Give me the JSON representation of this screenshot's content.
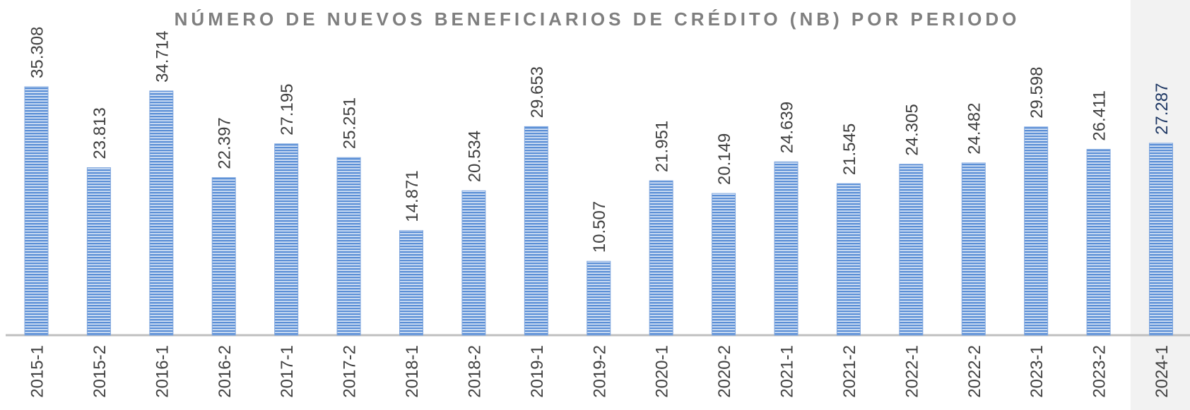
{
  "chart_data": {
    "type": "bar",
    "title": "NÚMERO DE NUEVOS BENEFICIARIOS DE CRÉDITO (NB) POR PERIODO",
    "categories": [
      "2015-1",
      "2015-2",
      "2016-1",
      "2016-2",
      "2017-1",
      "2017-2",
      "2018-1",
      "2018-2",
      "2019-1",
      "2019-2",
      "2020-1",
      "2020-2",
      "2021-1",
      "2021-2",
      "2022-1",
      "2022-2",
      "2023-1",
      "2023-2",
      "2024-1"
    ],
    "values": [
      35308,
      23813,
      34714,
      22397,
      27195,
      25251,
      14871,
      20534,
      29653,
      10507,
      21951,
      20149,
      24639,
      21545,
      24305,
      24482,
      29598,
      26411,
      27287
    ],
    "value_labels": [
      "35.308",
      "23.813",
      "34.714",
      "22.397",
      "27.195",
      "25.251",
      "14.871",
      "20.534",
      "29.653",
      "10.507",
      "21.951",
      "20.149",
      "24.639",
      "21.545",
      "24.305",
      "24.482",
      "29.598",
      "26.411",
      "27.287"
    ],
    "color": "#5b8fd6"
  }
}
